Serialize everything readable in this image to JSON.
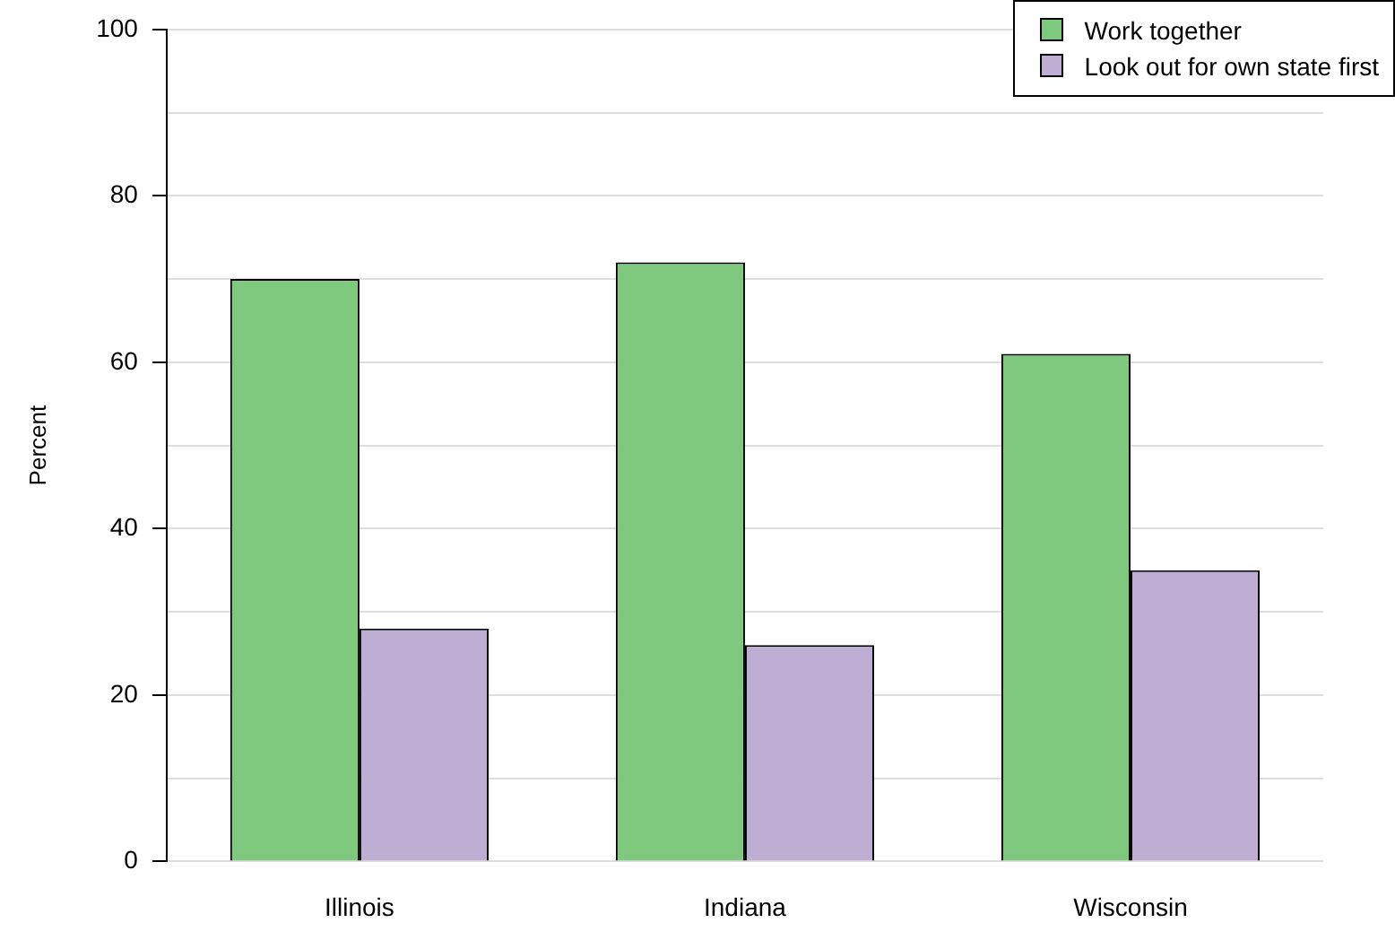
{
  "chart_data": {
    "type": "bar",
    "ylabel": "Percent",
    "categories": [
      "Illinois",
      "Indiana",
      "Wisconsin"
    ],
    "series": [
      {
        "name": "Work together",
        "color": "#7fc97f",
        "values": [
          70,
          72,
          61
        ]
      },
      {
        "name": "Look out for own state first",
        "color": "#beaed4",
        "values": [
          28,
          26,
          35
        ]
      }
    ],
    "ylim": [
      0,
      100
    ],
    "yticks": [
      0,
      {
        "value": 10,
        "label": null
      },
      20,
      {
        "value": 30,
        "label": null
      },
      40,
      {
        "value": 50,
        "label": null
      },
      60,
      {
        "value": 70,
        "label": null
      },
      80,
      {
        "value": 90,
        "label": null
      },
      100
    ],
    "grid": "y",
    "legend": "top right"
  }
}
